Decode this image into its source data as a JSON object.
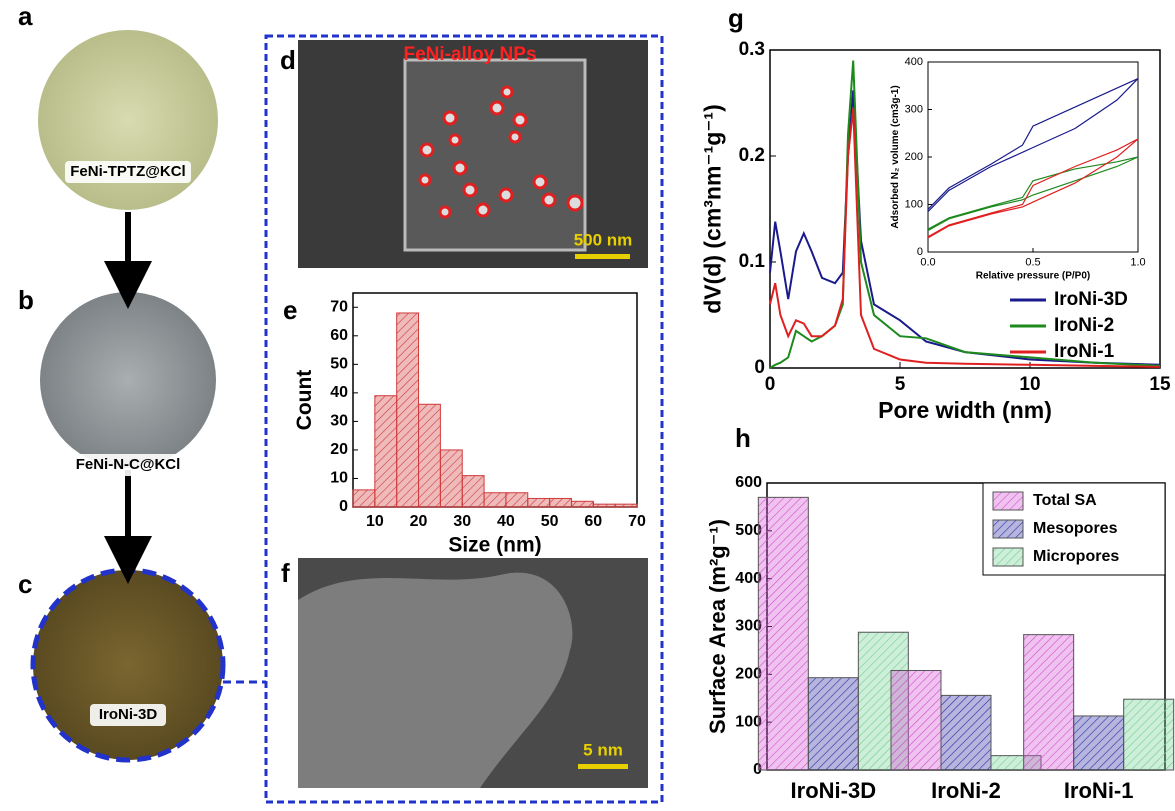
{
  "panel_labels": [
    "a",
    "b",
    "c",
    "d",
    "e",
    "f",
    "g",
    "h"
  ],
  "photos": [
    "FeNi-TPTZ@KCl",
    "FeNi-N-C@KCl",
    "IroNi-3D"
  ],
  "sem": {
    "title": "FeNi-alloy NPs",
    "scale": "500 nm"
  },
  "tem": {
    "scale": "5 nm"
  },
  "chart_data": [
    {
      "type": "histogram",
      "xlabel": "Size (nm)",
      "ylabel": "Count",
      "color": "#d03a3a",
      "bins": [
        5,
        10,
        15,
        20,
        25,
        30,
        35,
        40,
        45,
        50,
        55,
        60,
        65,
        70
      ],
      "values": [
        6,
        39,
        68,
        36,
        20,
        11,
        5,
        5,
        3,
        3,
        2,
        1,
        1
      ],
      "xlim": [
        5,
        70
      ],
      "xticks": [
        10,
        20,
        30,
        40,
        50,
        60,
        70
      ],
      "ylim": [
        0,
        75
      ],
      "yticks": [
        0,
        10,
        20,
        30,
        40,
        50,
        60,
        70
      ]
    },
    {
      "type": "line",
      "xlabel": "Pore width (nm)",
      "ylabel": "dV(d) (cm³nm⁻¹g⁻¹)",
      "legend": "lower right",
      "x": [
        0,
        0.2,
        0.4,
        0.7,
        1,
        1.3,
        1.6,
        2,
        2.5,
        2.8,
        3,
        3.2,
        3.5,
        4,
        5,
        6,
        7.5,
        10,
        12.5,
        15
      ],
      "series": [
        {
          "name": "IroNi-3D",
          "color": "#1a1a8c",
          "values": [
            0.09,
            0.138,
            0.11,
            0.065,
            0.11,
            0.127,
            0.11,
            0.085,
            0.08,
            0.09,
            0.2,
            0.262,
            0.12,
            0.06,
            0.045,
            0.025,
            0.015,
            0.008,
            0.005,
            0.003
          ]
        },
        {
          "name": "IroNi-2",
          "color": "#1e8a1e",
          "values": [
            0,
            0.003,
            0.005,
            0.01,
            0.035,
            0.03,
            0.025,
            0.03,
            0.04,
            0.06,
            0.22,
            0.29,
            0.1,
            0.05,
            0.03,
            0.028,
            0.015,
            0.01,
            0.005,
            0.002
          ]
        },
        {
          "name": "IroNi-1",
          "color": "#e02020",
          "values": [
            0.06,
            0.08,
            0.05,
            0.03,
            0.045,
            0.042,
            0.03,
            0.03,
            0.04,
            0.065,
            0.2,
            0.245,
            0.05,
            0.018,
            0.008,
            0.005,
            0.004,
            0.003,
            0.002,
            0.001
          ]
        }
      ],
      "xlim": [
        0,
        15
      ],
      "xticks": [
        0,
        5,
        10,
        15
      ],
      "ylim": [
        0,
        0.3
      ],
      "yticks": [
        0,
        0.1,
        0.2,
        0.3
      ]
    },
    {
      "type": "line",
      "xlabel": "Relative pressure (P/P0)",
      "ylabel": "Adsorbed N₂ volume (cm3g-1)",
      "x": [
        0,
        0.1,
        0.3,
        0.45,
        0.5,
        0.7,
        0.9,
        1.0,
        0.9,
        0.7,
        0.5,
        0.45,
        0.3,
        0.1,
        0
      ],
      "series": [
        {
          "name": "IroNi-3D",
          "color": "#1a1a8c",
          "values": [
            85,
            130,
            180,
            210,
            220,
            260,
            320,
            365,
            345,
            305,
            265,
            225,
            185,
            135,
            90
          ]
        },
        {
          "name": "IroNi-2",
          "color": "#1e8a1e",
          "values": [
            45,
            70,
            95,
            110,
            120,
            150,
            180,
            200,
            190,
            175,
            150,
            115,
            97,
            72,
            48
          ]
        },
        {
          "name": "IroNi-1",
          "color": "#e02020",
          "values": [
            30,
            55,
            80,
            95,
            105,
            145,
            200,
            238,
            215,
            180,
            140,
            100,
            82,
            57,
            32
          ]
        }
      ],
      "xlim": [
        0,
        1
      ],
      "xticks": [
        {
          "value": 0,
          "label": "0.0"
        },
        {
          "value": 0.5,
          "label": "0.5"
        },
        {
          "value": 1,
          "label": "1.0"
        }
      ],
      "ylim": [
        0,
        400
      ],
      "yticks": [
        0,
        100,
        200,
        300,
        400
      ]
    },
    {
      "type": "bar",
      "ylabel": "Surface Area (m²g⁻¹)",
      "legend": "upper right",
      "categories": [
        "IroNi-3D",
        "IroNi-2",
        "IroNi-1"
      ],
      "series": [
        {
          "name": "Total SA",
          "color": "#d050d0",
          "values": [
            570,
            208,
            283
          ]
        },
        {
          "name": "Mesopores",
          "color": "#2a2aa0",
          "values": [
            193,
            156,
            113
          ]
        },
        {
          "name": "Micropores",
          "color": "#6fcf8f",
          "values": [
            288,
            30,
            148
          ]
        }
      ],
      "ylim": [
        0,
        600
      ],
      "yticks": [
        0,
        100,
        200,
        300,
        400,
        500,
        600
      ]
    }
  ]
}
